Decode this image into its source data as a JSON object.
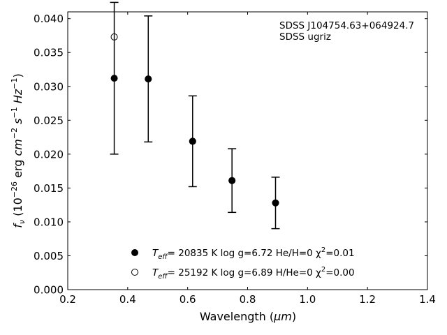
{
  "chart_data": {
    "type": "scatter",
    "title": "",
    "xlabel": "Wavelength",
    "xlabel_unit": "μm",
    "ylabel": "f",
    "ylabel_sub": "ν",
    "ylabel_unit_prefix": "(10",
    "ylabel_unit_exp": "−26",
    "ylabel_unit_rest": " erg cm",
    "ylabel_units": [
      "erg",
      "cm",
      "−2",
      "s",
      "−1",
      "Hz",
      "−1"
    ],
    "xlim": [
      0.2,
      1.4
    ],
    "ylim": [
      0.0,
      0.041
    ],
    "xticks": [
      0.2,
      0.4,
      0.6,
      0.8,
      1.0,
      1.2,
      1.4
    ],
    "xtick_labels": [
      "0.2",
      "0.4",
      "0.6",
      "0.8",
      "1.0",
      "1.2",
      "1.4"
    ],
    "yticks": [
      0.0,
      0.005,
      0.01,
      0.015,
      0.02,
      0.025,
      0.03,
      0.035,
      0.04
    ],
    "ytick_labels": [
      "0.000",
      "0.005",
      "0.010",
      "0.015",
      "0.020",
      "0.025",
      "0.030",
      "0.035",
      "0.040"
    ],
    "grid": false,
    "annotation_lines": [
      "SDSS J104754.63+064924.7",
      "SDSS ugriz"
    ],
    "observed": {
      "x": [
        0.3551,
        0.4686,
        0.6166,
        0.748,
        0.8932
      ],
      "y": [
        0.0312,
        0.0311,
        0.0219,
        0.0161,
        0.0128
      ],
      "err": [
        0.0112,
        0.0093,
        0.0067,
        0.0047,
        0.0038
      ]
    },
    "series": [
      {
        "label_parts": [
          "T",
          "eff",
          "= 20835 K  log g=6.72  He/H=0  χ",
          "2",
          "=0.01"
        ],
        "marker": "filled",
        "x": [
          0.3551,
          0.4686,
          0.6166,
          0.748,
          0.8932
        ],
        "y": [
          0.0312,
          0.0311,
          0.0219,
          0.0161,
          0.0128
        ]
      },
      {
        "label_parts": [
          "T",
          "eff",
          "= 25192 K  log g=6.89  H/He=0  χ",
          "2",
          "=0.00"
        ],
        "marker": "open",
        "x": [
          0.3551,
          0.4686,
          0.6166,
          0.748,
          0.8932
        ],
        "y": [
          0.0373,
          0.0311,
          0.0219,
          0.0161,
          0.0128
        ]
      }
    ],
    "legend_position": "bottom-center"
  }
}
